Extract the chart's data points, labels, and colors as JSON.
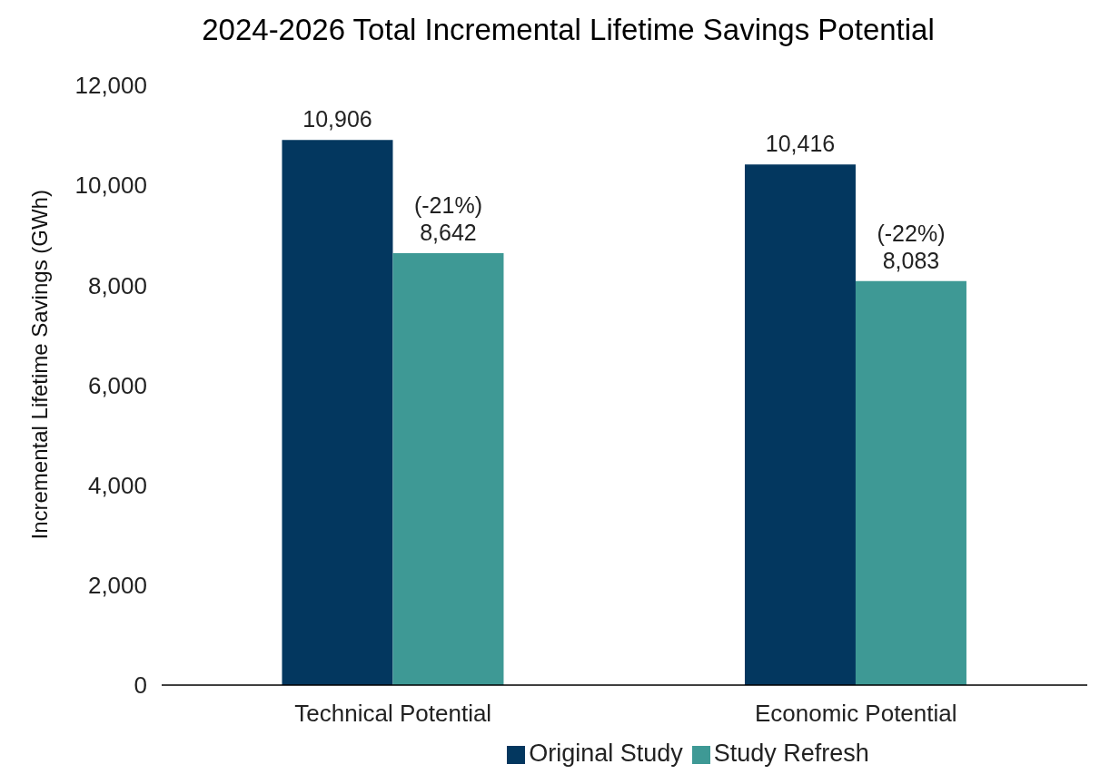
{
  "chart_data": {
    "type": "bar",
    "title": "2024-2026 Total Incremental Lifetime Savings Potential",
    "ylabel": "Incremental Lifetime Savings (GWh)",
    "categories": [
      "Technical Potential",
      "Economic Potential"
    ],
    "series": [
      {
        "name": "Original Study",
        "color": "#03375f",
        "values": [
          10906,
          10416
        ],
        "value_labels": [
          "10,906",
          "10,416"
        ]
      },
      {
        "name": "Study Refresh",
        "color": "#3e9995",
        "values": [
          8642,
          8083
        ],
        "value_labels": [
          "(-21%)\n8,642",
          "(-22%)\n8,083"
        ]
      }
    ],
    "ylim": [
      0,
      12000
    ],
    "yticks": [
      0,
      {
        "value": 2000,
        "label": "2,000"
      },
      {
        "value": 4000,
        "label": "4,000"
      },
      {
        "value": 6000,
        "label": "6,000"
      },
      {
        "value": 8000,
        "label": "8,000"
      },
      {
        "value": 10000,
        "label": "10,000"
      },
      {
        "value": 12000,
        "label": "12,000"
      }
    ],
    "grid": false,
    "legend": "bottom"
  }
}
